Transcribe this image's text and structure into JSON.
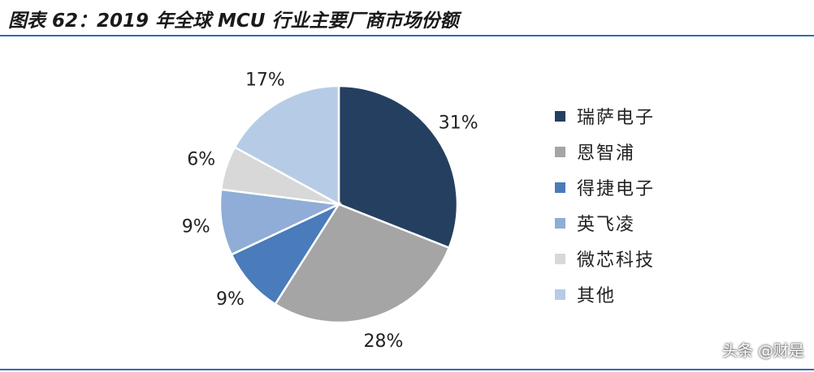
{
  "title": "图表 62：2019 年全球 MCU 行业主要厂商市场份额",
  "chart_data": {
    "type": "pie",
    "categories": [
      "瑞萨电子",
      "恩智浦",
      "得捷电子",
      "英飞凌",
      "微芯科技",
      "其他"
    ],
    "values": [
      31,
      28,
      9,
      9,
      6,
      17
    ],
    "labels": [
      "31%",
      "28%",
      "9%",
      "9%",
      "6%",
      "17%"
    ],
    "colors": [
      "#253f60",
      "#a5a5a5",
      "#4a7bba",
      "#8fadd6",
      "#d8d8d8",
      "#b6cce6"
    ],
    "legend_position": "right"
  },
  "watermark": "头条 @财是"
}
